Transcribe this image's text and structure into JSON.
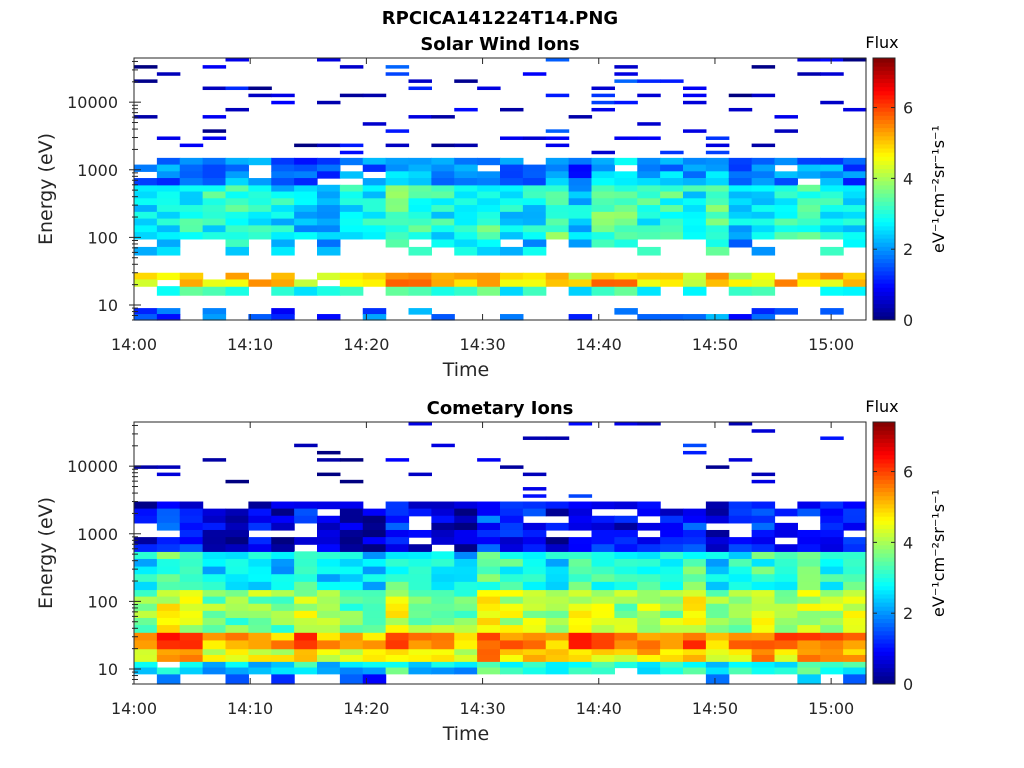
{
  "figure": {
    "title": "RPCICA141224T14.PNG",
    "background": "#ffffff"
  },
  "chart_data": [
    {
      "type": "heatmap",
      "title": "Solar Wind Ions",
      "xlabel": "Time",
      "ylabel": "Energy (eV)",
      "x_tick_labels": [
        "14:00",
        "14:10",
        "14:20",
        "14:30",
        "14:40",
        "14:50",
        "15:00"
      ],
      "x_tick_minutes": [
        0,
        10,
        20,
        30,
        40,
        50,
        60
      ],
      "xlim_minutes": [
        0,
        63
      ],
      "y_scale": "log",
      "y_tick_labels": [
        "10",
        "100",
        "1000",
        "10000"
      ],
      "y_tick_values": [
        10,
        100,
        1000,
        10000
      ],
      "ylim": [
        6,
        45000
      ],
      "colorbar": {
        "title": "Flux",
        "label": "eV⁻¹cm⁻²sr⁻¹s⁻¹",
        "ticks": [
          0,
          2,
          4,
          6
        ],
        "range": [
          0,
          7.4
        ],
        "colormap": "jet"
      },
      "n_time_bins": 32,
      "energy_band_profile": [
        {
          "emin": 6,
          "emax": 9,
          "flux": 1.6,
          "coverage": 0.35
        },
        {
          "emin": 14,
          "emax": 19,
          "flux": 3.0,
          "coverage": 0.7
        },
        {
          "emin": 19,
          "emax": 30,
          "flux": 4.9,
          "coverage": 0.95
        },
        {
          "emin": 55,
          "emax": 95,
          "flux": 2.6,
          "coverage": 0.55
        },
        {
          "emin": 95,
          "emax": 600,
          "flux": 2.9,
          "coverage": 1.0
        },
        {
          "emin": 600,
          "emax": 1500,
          "flux": 1.8,
          "coverage": 0.9
        },
        {
          "emin": 1500,
          "emax": 45000,
          "flux": 0.6,
          "coverage": 0.22
        }
      ]
    },
    {
      "type": "heatmap",
      "title": "Cometary Ions",
      "xlabel": "Time",
      "ylabel": "Energy (eV)",
      "x_tick_labels": [
        "14:00",
        "14:10",
        "14:20",
        "14:30",
        "14:40",
        "14:50",
        "15:00"
      ],
      "x_tick_minutes": [
        0,
        10,
        20,
        30,
        40,
        50,
        60
      ],
      "xlim_minutes": [
        0,
        63
      ],
      "y_scale": "log",
      "y_tick_labels": [
        "10",
        "100",
        "1000",
        "10000"
      ],
      "y_tick_values": [
        10,
        100,
        1000,
        10000
      ],
      "ylim": [
        6,
        45000
      ],
      "colorbar": {
        "title": "Flux",
        "label": "eV⁻¹cm⁻²sr⁻¹s⁻¹",
        "ticks": [
          0,
          2,
          4,
          6
        ],
        "range": [
          0,
          7.4
        ],
        "colormap": "jet"
      },
      "n_time_bins": 32,
      "energy_band_profile": [
        {
          "emin": 6,
          "emax": 8.5,
          "flux": 1.8,
          "coverage": 0.2
        },
        {
          "emin": 8.5,
          "emax": 13,
          "flux": 2.8,
          "coverage": 0.95
        },
        {
          "emin": 13,
          "emax": 20,
          "flux": 4.9,
          "coverage": 1.0
        },
        {
          "emin": 20,
          "emax": 35,
          "flux": 5.6,
          "coverage": 1.0
        },
        {
          "emin": 35,
          "emax": 150,
          "flux": 4.0,
          "coverage": 1.0
        },
        {
          "emin": 150,
          "emax": 550,
          "flux": 2.9,
          "coverage": 1.0
        },
        {
          "emin": 550,
          "emax": 3000,
          "flux": 0.9,
          "coverage": 0.8
        },
        {
          "emin": 3000,
          "emax": 45000,
          "flux": 0.5,
          "coverage": 0.08
        }
      ]
    }
  ]
}
